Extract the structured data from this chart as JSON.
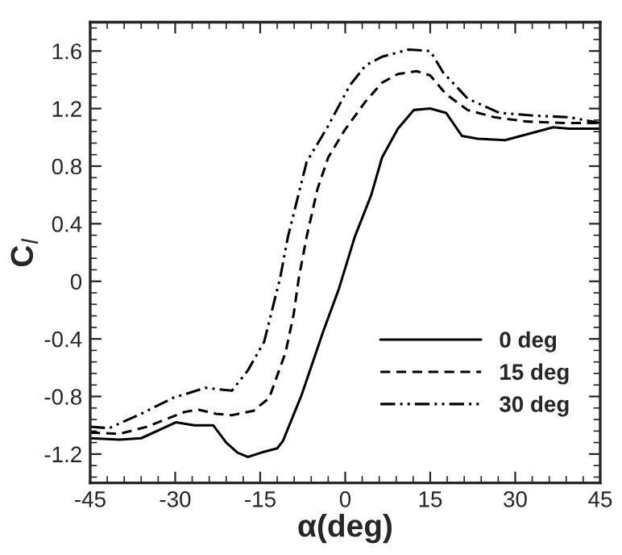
{
  "chart_data": {
    "type": "line",
    "xlabel": "α(deg)",
    "ylabel": "C$_{l}$",
    "xlim": [
      -45,
      45
    ],
    "xticks": [
      -45,
      -30,
      -15,
      0,
      15,
      30,
      45
    ],
    "ylim": [
      -1.4,
      1.8
    ],
    "yticks": [
      -1.2,
      -0.8,
      -0.4,
      0,
      0.4,
      0.8,
      1.2,
      1.6
    ],
    "grid": false,
    "legend": "bottom right",
    "series": [
      {
        "name": "0 deg",
        "color": "#000000",
        "line_style": "solid",
        "x": [
          -45,
          -39.8,
          -36,
          -29.9,
          -26.6,
          -23.3,
          -21,
          -19,
          -17.2,
          -14.8,
          -12,
          -11,
          -7.7,
          -3.9,
          -1.1,
          1.7,
          4.6,
          6.5,
          9.3,
          12.1,
          15,
          17.8,
          20.6,
          23.4,
          28.2,
          31,
          36.7,
          39.5,
          45
        ],
        "values": [
          -1.09,
          -1.1,
          -1.09,
          -0.98,
          -1.0,
          -1.0,
          -1.12,
          -1.19,
          -1.22,
          -1.19,
          -1.16,
          -1.11,
          -0.79,
          -0.35,
          -0.05,
          0.31,
          0.6,
          0.86,
          1.06,
          1.19,
          1.2,
          1.17,
          1.01,
          0.99,
          0.98,
          1.01,
          1.07,
          1.06,
          1.06
        ]
      },
      {
        "name": "15 deg",
        "color": "#000000",
        "line_style": "dashed",
        "x": [
          -45,
          -39.8,
          -35,
          -28.5,
          -26.1,
          -22.8,
          -20,
          -16.2,
          -13.4,
          -10.5,
          -9.1,
          -8.2,
          -6.8,
          -4.9,
          -3,
          -0.1,
          3.6,
          6.5,
          9.3,
          12.6,
          15,
          17.8,
          21.6,
          26.3,
          32,
          38.6,
          45
        ],
        "values": [
          -1.05,
          -1.06,
          -1.01,
          -0.91,
          -0.89,
          -0.92,
          -0.93,
          -0.9,
          -0.81,
          -0.49,
          -0.23,
          0.02,
          0.31,
          0.64,
          0.86,
          1.05,
          1.25,
          1.38,
          1.44,
          1.46,
          1.43,
          1.3,
          1.19,
          1.14,
          1.11,
          1.1,
          1.1
        ]
      },
      {
        "name": "30 deg",
        "color": "#000000",
        "line_style": "dashdot",
        "x": [
          -45,
          -41.7,
          -36,
          -30.4,
          -24.7,
          -20,
          -17.2,
          -14.3,
          -12.4,
          -11.5,
          -10.1,
          -6.8,
          -3,
          0.8,
          3.6,
          6.5,
          11.2,
          15,
          17.3,
          21.6,
          27.2,
          33.8,
          39.5,
          45
        ],
        "values": [
          -1.01,
          -1.02,
          -0.92,
          -0.81,
          -0.74,
          -0.76,
          -0.62,
          -0.42,
          -0.12,
          0.02,
          0.31,
          0.83,
          1.08,
          1.36,
          1.5,
          1.56,
          1.61,
          1.6,
          1.45,
          1.27,
          1.17,
          1.15,
          1.14,
          1.1
        ]
      }
    ]
  }
}
